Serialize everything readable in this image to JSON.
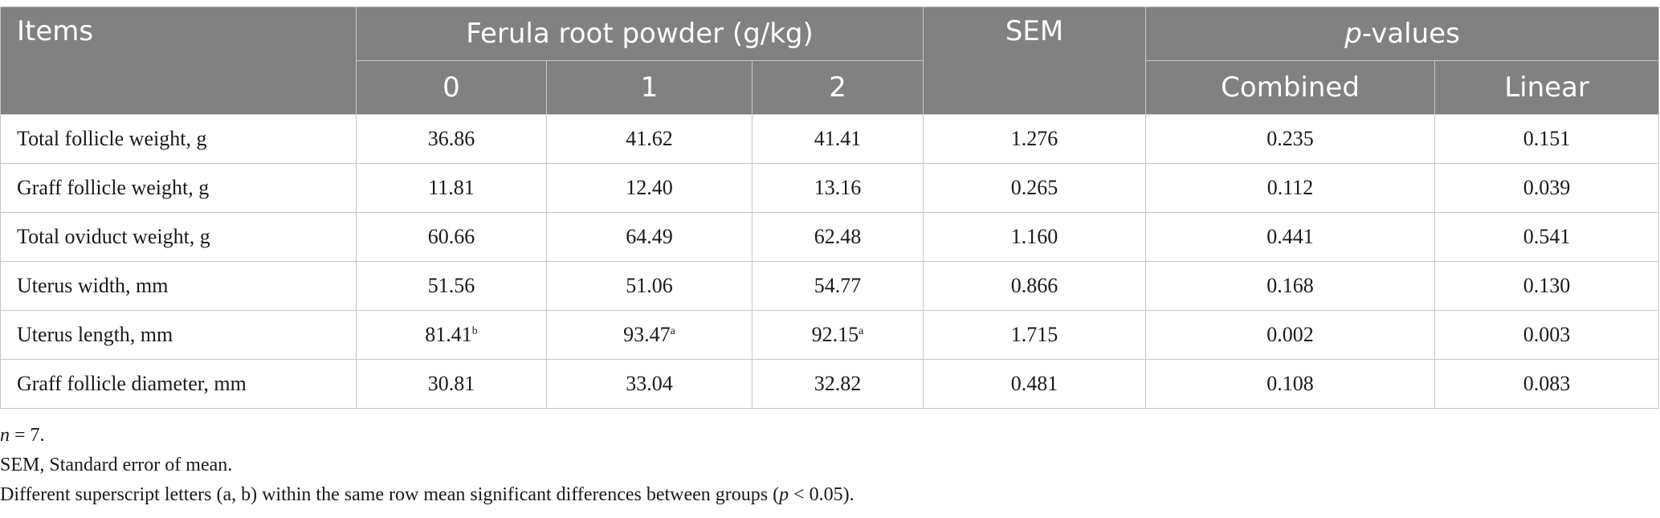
{
  "table": {
    "header": {
      "items": "Items",
      "group": "Ferula root powder (g/kg)",
      "levels": [
        "0",
        "1",
        "2"
      ],
      "sem": "SEM",
      "p_values_italic": "p",
      "p_values_rest": "-values",
      "combined": "Combined",
      "linear": "Linear"
    },
    "rows": [
      {
        "label": "Total follicle weight, g",
        "v0": "36.86",
        "v0_sup": "",
        "v1": "41.62",
        "v1_sup": "",
        "v2": "41.41",
        "v2_sup": "",
        "sem": "1.276",
        "combined": "0.235",
        "linear": "0.151"
      },
      {
        "label": "Graff follicle weight, g",
        "v0": "11.81",
        "v0_sup": "",
        "v1": "12.40",
        "v1_sup": "",
        "v2": "13.16",
        "v2_sup": "",
        "sem": "0.265",
        "combined": "0.112",
        "linear": "0.039"
      },
      {
        "label": "Total oviduct weight, g",
        "v0": "60.66",
        "v0_sup": "",
        "v1": "64.49",
        "v1_sup": "",
        "v2": "62.48",
        "v2_sup": "",
        "sem": "1.160",
        "combined": "0.441",
        "linear": "0.541"
      },
      {
        "label": "Uterus width, mm",
        "v0": "51.56",
        "v0_sup": "",
        "v1": "51.06",
        "v1_sup": "",
        "v2": "54.77",
        "v2_sup": "",
        "sem": "0.866",
        "combined": "0.168",
        "linear": "0.130"
      },
      {
        "label": "Uterus length, mm",
        "v0": "81.41",
        "v0_sup": "b",
        "v1": "93.47",
        "v1_sup": "a",
        "v2": "92.15",
        "v2_sup": "a",
        "sem": "1.715",
        "combined": "0.002",
        "linear": "0.003"
      },
      {
        "label": "Graff follicle diameter, mm",
        "v0": "30.81",
        "v0_sup": "",
        "v1": "33.04",
        "v1_sup": "",
        "v2": "32.82",
        "v2_sup": "",
        "sem": "0.481",
        "combined": "0.108",
        "linear": "0.083"
      }
    ]
  },
  "notes": {
    "n_italic": "n",
    "n_rest": " = 7.",
    "sem_def": "SEM, Standard error of mean.",
    "sig_pre": "Different superscript letters (a, b) within the same row mean significant differences between groups (",
    "sig_p": "p",
    "sig_post": " < 0.05)."
  },
  "colors": {
    "header_bg": "#808180",
    "header_text": "#ffffff",
    "border": "#c6c6c6"
  }
}
